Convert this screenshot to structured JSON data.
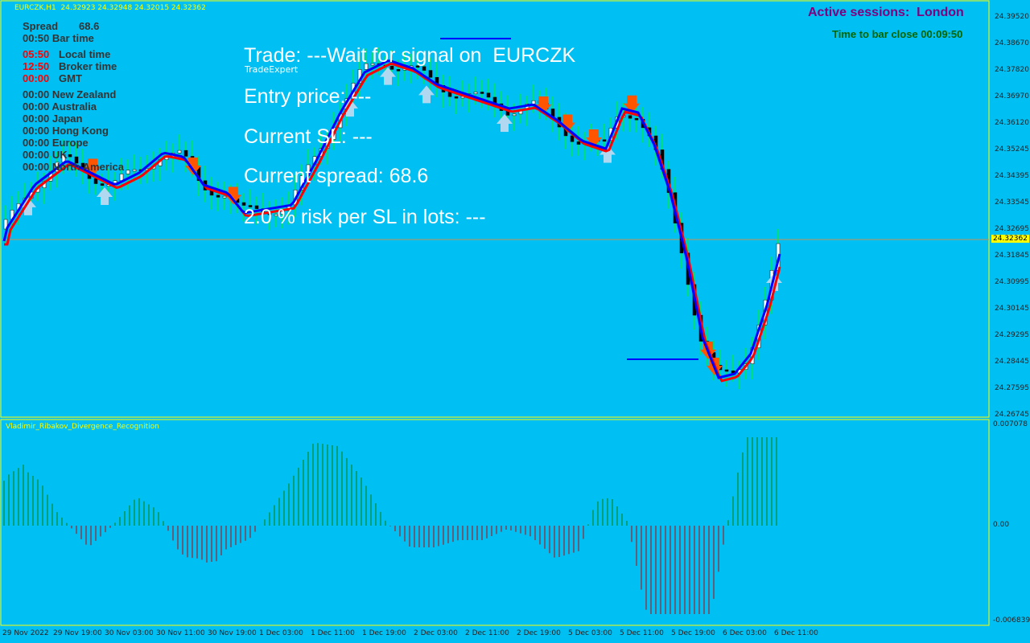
{
  "symbol_header": "EURCZK,H1  24.32923 24.32948 24.32015 24.32362",
  "info_panel": {
    "spread_label": "Spread",
    "spread_value": "68.6",
    "bar_time": "00:50 Bar time",
    "local_time_value": "05:50",
    "local_time_label": "Local time",
    "broker_time_value": "12:50",
    "broker_time_label": "Broker time",
    "gmt_value": "00:00",
    "gmt_label": "GMT",
    "sessions": [
      "00:00 New Zealand",
      "00:00 Australia",
      "00:00 Japan",
      "00:00 Hong Kong",
      "00:00 Europe",
      "00:00 UK",
      "00:00 North America"
    ]
  },
  "session_panel": {
    "active_sessions": "Active sessions:  London",
    "bar_close": "Time to bar close 00:09:50"
  },
  "trade_expert": {
    "name": "TradeExpert",
    "trade": "Trade: ---Wait for signal on  EURCZK",
    "entry": "Entry price: ---",
    "current_sl": "Current SL: ---",
    "current_spread": "Current spread: 68.6",
    "risk": "2.0 % risk per SL in lots: ---"
  },
  "indicator_name": "Vladimir_Ribakov_Divergence_Recognition",
  "price_axis": [
    "24.39520",
    "24.38670",
    "24.37820",
    "24.36970",
    "24.36120",
    "24.35245",
    "24.34395",
    "24.33545",
    "24.32695",
    "24.31845",
    "24.30995",
    "24.30145",
    "24.29295",
    "24.28445",
    "24.27595",
    "24.26745"
  ],
  "current_price": "24.32362",
  "indicator_axis": {
    "max": "0.007078",
    "zero": "0.00",
    "min": "-0.006839"
  },
  "time_axis": [
    "29 Nov 2022",
    "29 Nov 19:00",
    "30 Nov 03:00",
    "30 Nov 11:00",
    "30 Nov 19:00",
    "1 Dec 03:00",
    "1 Dec 11:00",
    "1 Dec 19:00",
    "2 Dec 03:00",
    "2 Dec 11:00",
    "2 Dec 19:00",
    "5 Dec 03:00",
    "5 Dec 11:00",
    "5 Dec 19:00",
    "6 Dec 03:00",
    "6 Dec 11:00"
  ],
  "colors": {
    "background": "#00BFF3",
    "bull_candle": "#FFFFFF",
    "bear_candle": "#000000",
    "wick_green": "#00FF00",
    "ma_red": "#FF0000",
    "ma_blue": "#0000FF",
    "arrow_orange": "#FF5500",
    "arrow_light": "#B0D8F0",
    "hist_green": "#008000",
    "hist_red": "#C00000",
    "sessions_text": "#800080",
    "bar_close_text": "#006400",
    "grid_text": "#FFFF00"
  }
}
